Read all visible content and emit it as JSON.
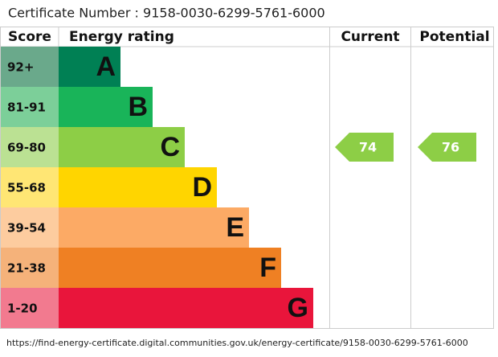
{
  "header": {
    "certificate": "Certificate Number : 9158-0030-6299-5761-6000"
  },
  "columns": [
    "Score",
    "Energy rating",
    "Current",
    "Potential"
  ],
  "bands": [
    {
      "score": "92+",
      "letter": "A",
      "color": "#008054",
      "light": "#6aa98b"
    },
    {
      "score": "81-91",
      "letter": "B",
      "color": "#19b459",
      "light": "#7ccf99"
    },
    {
      "score": "69-80",
      "letter": "C",
      "color": "#8dce46",
      "light": "#bbe193"
    },
    {
      "score": "55-68",
      "letter": "D",
      "color": "#ffd500",
      "light": "#ffe674"
    },
    {
      "score": "39-54",
      "letter": "E",
      "color": "#fcaa65",
      "light": "#fdcc9f"
    },
    {
      "score": "21-38",
      "letter": "F",
      "color": "#ef8023",
      "light": "#f5b27a"
    },
    {
      "score": "1-20",
      "letter": "G",
      "color": "#e9153b",
      "light": "#f27a8f"
    }
  ],
  "current": {
    "value": 74
  },
  "potential": {
    "value": 76
  },
  "footer": {
    "url": "https://find-energy-certificate.digital.communities.gov.uk/energy-certificate/9158-0030-6299-5761-6000"
  }
}
